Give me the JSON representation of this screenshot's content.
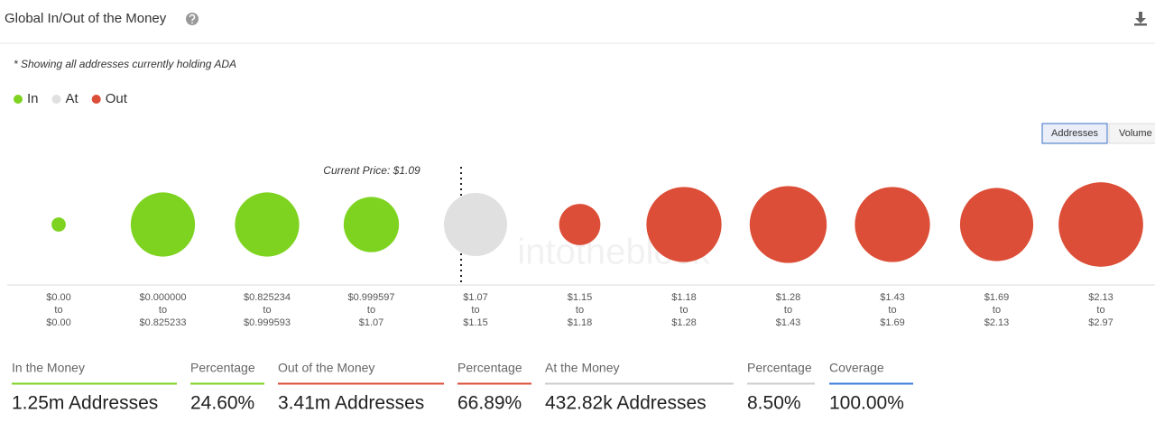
{
  "title": "Global In/Out of the Money",
  "note": "* Showing all addresses currently holding ADA",
  "toggle": [
    "Addresses",
    "Volume"
  ],
  "watermark": "intotheblock",
  "chart_data": {
    "type": "bubble",
    "annotation": "Current Price: $1.09",
    "range_word": "to",
    "categories": [
      {
        "from": "$0.00",
        "to": "$0.00"
      },
      {
        "from": "$0.000000",
        "to": "$0.825233"
      },
      {
        "from": "$0.825234",
        "to": "$0.999593"
      },
      {
        "from": "$0.999597",
        "to": "$1.07"
      },
      {
        "from": "$1.07",
        "to": "$1.15"
      },
      {
        "from": "$1.15",
        "to": "$1.18"
      },
      {
        "from": "$1.18",
        "to": "$1.28"
      },
      {
        "from": "$1.28",
        "to": "$1.43"
      },
      {
        "from": "$1.43",
        "to": "$1.69"
      },
      {
        "from": "$1.69",
        "to": "$2.13"
      },
      {
        "from": "$2.13",
        "to": "$2.97"
      }
    ],
    "series": [
      {
        "name": "In",
        "color": "#7ed321",
        "values": [
          22000,
          448000,
          448000,
          332000,
          null,
          null,
          null,
          null,
          null,
          null,
          null
        ]
      },
      {
        "name": "At",
        "color": "#e0e0e0",
        "values": [
          null,
          null,
          null,
          null,
          432820,
          null,
          null,
          null,
          null,
          null,
          null
        ]
      },
      {
        "name": "Out",
        "color": "#dc4e37",
        "values": [
          null,
          null,
          null,
          null,
          null,
          185000,
          612000,
          643000,
          612000,
          582000,
          775000
        ]
      }
    ]
  },
  "summary": [
    {
      "label": "In the Money",
      "value": "1.25m Addresses",
      "color": "#7ed321"
    },
    {
      "label": "Percentage",
      "value": "24.60%",
      "color": "#7ed321"
    },
    {
      "label": "Out of the Money",
      "value": "3.41m Addresses",
      "color": "#dc4e37"
    },
    {
      "label": "Percentage",
      "value": "66.89%",
      "color": "#dc4e37"
    },
    {
      "label": "At the Money",
      "value": "432.82k Addresses",
      "color": "#cccccc"
    },
    {
      "label": "Percentage",
      "value": "8.50%",
      "color": "#cccccc"
    },
    {
      "label": "Coverage",
      "value": "100.00%",
      "color": "#3b7dd8"
    }
  ]
}
